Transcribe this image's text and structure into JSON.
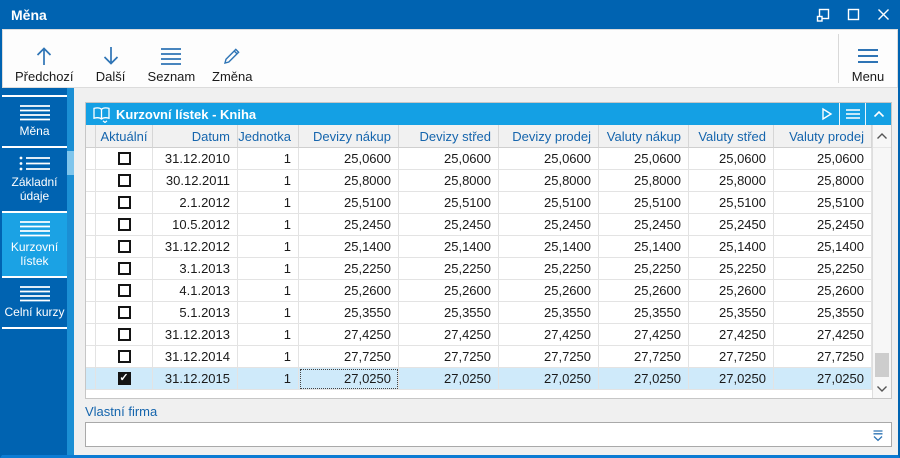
{
  "window": {
    "title": "Měna",
    "controls": [
      {
        "name": "float",
        "icon": "float-icon"
      },
      {
        "name": "maximize",
        "icon": "maximize-icon"
      },
      {
        "name": "close",
        "icon": "close-icon"
      }
    ]
  },
  "toolbar": {
    "buttons": [
      {
        "label": "Předchozí",
        "icon": "arrow-up-icon"
      },
      {
        "label": "Další",
        "icon": "arrow-down-icon"
      },
      {
        "label": "Seznam",
        "icon": "list-icon"
      },
      {
        "label": "Změna",
        "icon": "pencil-icon"
      }
    ],
    "menu_button": {
      "label": "Menu",
      "icon": "menu-icon"
    }
  },
  "sidebar": {
    "items": [
      {
        "label": "Měna",
        "icon": "list-icon",
        "active": false
      },
      {
        "label": "Základní údaje",
        "icon": "list-dots-icon",
        "active": false
      },
      {
        "label": "Kurzovní lístek",
        "icon": "list-icon",
        "active": true
      },
      {
        "label": "Celní kurzy",
        "icon": "list-icon",
        "active": false
      }
    ]
  },
  "panel": {
    "title": "Kurzovní lístek - Kniha",
    "title_icon": "open-book-icon",
    "header_icons": [
      {
        "name": "play-icon"
      },
      {
        "name": "panel-menu-icon"
      },
      {
        "name": "collapse-icon"
      }
    ]
  },
  "table": {
    "columns": [
      "Aktuální",
      "Datum",
      "Jednotka",
      "Devizy nákup",
      "Devizy střed",
      "Devizy prodej",
      "Valuty nákup",
      "Valuty střed",
      "Valuty prodej"
    ],
    "rows": [
      {
        "checked": false,
        "datum": "31.12.2010",
        "jednotka": "1",
        "rates": [
          "25,0600",
          "25,0600",
          "25,0600",
          "25,0600",
          "25,0600",
          "25,0600"
        ]
      },
      {
        "checked": false,
        "datum": "30.12.2011",
        "jednotka": "1",
        "rates": [
          "25,8000",
          "25,8000",
          "25,8000",
          "25,8000",
          "25,8000",
          "25,8000"
        ]
      },
      {
        "checked": false,
        "datum": "2.1.2012",
        "jednotka": "1",
        "rates": [
          "25,5100",
          "25,5100",
          "25,5100",
          "25,5100",
          "25,5100",
          "25,5100"
        ]
      },
      {
        "checked": false,
        "datum": "10.5.2012",
        "jednotka": "1",
        "rates": [
          "25,2450",
          "25,2450",
          "25,2450",
          "25,2450",
          "25,2450",
          "25,2450"
        ]
      },
      {
        "checked": false,
        "datum": "31.12.2012",
        "jednotka": "1",
        "rates": [
          "25,1400",
          "25,1400",
          "25,1400",
          "25,1400",
          "25,1400",
          "25,1400"
        ]
      },
      {
        "checked": false,
        "datum": "3.1.2013",
        "jednotka": "1",
        "rates": [
          "25,2250",
          "25,2250",
          "25,2250",
          "25,2250",
          "25,2250",
          "25,2250"
        ]
      },
      {
        "checked": false,
        "datum": "4.1.2013",
        "jednotka": "1",
        "rates": [
          "25,2600",
          "25,2600",
          "25,2600",
          "25,2600",
          "25,2600",
          "25,2600"
        ]
      },
      {
        "checked": false,
        "datum": "5.1.2013",
        "jednotka": "1",
        "rates": [
          "25,3550",
          "25,3550",
          "25,3550",
          "25,3550",
          "25,3550",
          "25,3550"
        ]
      },
      {
        "checked": false,
        "datum": "31.12.2013",
        "jednotka": "1",
        "rates": [
          "27,4250",
          "27,4250",
          "27,4250",
          "27,4250",
          "27,4250",
          "27,4250"
        ]
      },
      {
        "checked": false,
        "datum": "31.12.2014",
        "jednotka": "1",
        "rates": [
          "27,7250",
          "27,7250",
          "27,7250",
          "27,7250",
          "27,7250",
          "27,7250"
        ]
      },
      {
        "checked": true,
        "datum": "31.12.2015",
        "jednotka": "1",
        "rates": [
          "27,0250",
          "27,0250",
          "27,0250",
          "27,0250",
          "27,0250",
          "27,0250"
        ]
      }
    ],
    "selected_row": 10,
    "focused_column": "Devizy nákup"
  },
  "footer": {
    "label": "Vlastní firma",
    "value": "",
    "icon": "combo-down-icon"
  },
  "colors": {
    "titlebar_blue": "#0063b1",
    "sidebar_blue": "#0063b1",
    "active_blue": "#1ba2e4",
    "panel_header_blue": "#14a0e4",
    "selected_row": "#cfeafa",
    "header_text_blue": "#1565ad",
    "toolbar_icon_blue": "#2e74b5"
  }
}
